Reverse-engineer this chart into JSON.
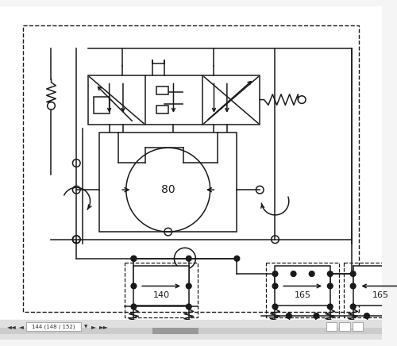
{
  "bg_color": "#f5f5f5",
  "diagram_bg": "#ffffff",
  "line_color": "#1a1a1a",
  "motor_label": "80",
  "comp140_label": "140",
  "comp165a_label": "165",
  "comp165b_label": "165",
  "toolbar_text": "144 (148 / 152)"
}
